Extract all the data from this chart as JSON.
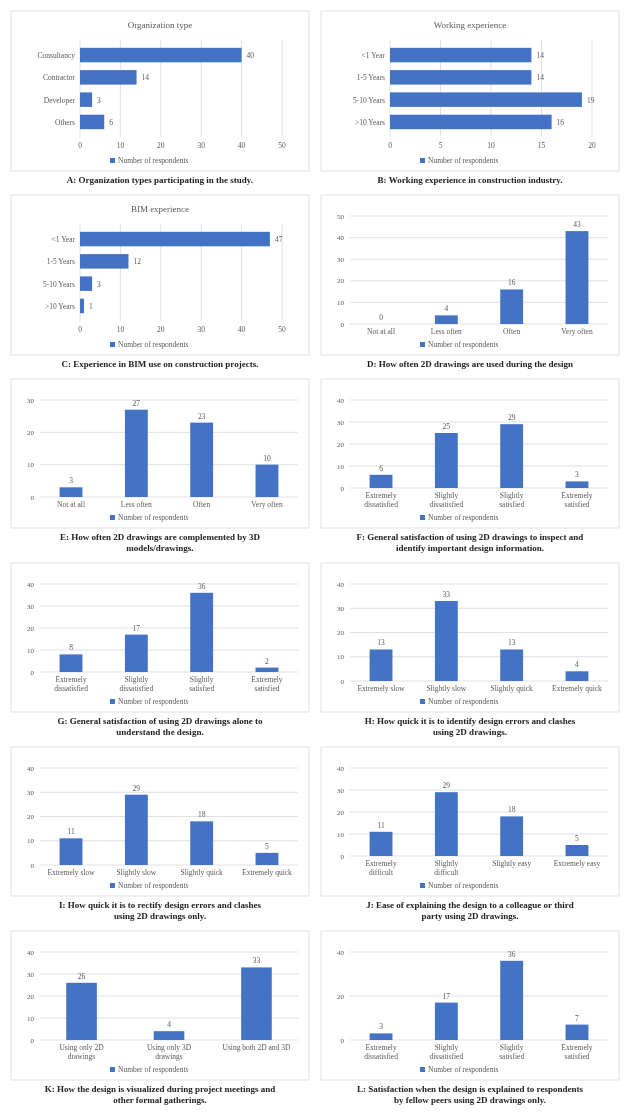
{
  "chart_data": [
    {
      "type": "bar",
      "orientation": "horizontal",
      "title": "Organization type",
      "categories": [
        "Consultancy",
        "Contractor",
        "Developer",
        "Others"
      ],
      "series": [
        {
          "name": "Number of respondents",
          "color": "#4472c4",
          "values": [
            40,
            14,
            3,
            6
          ]
        }
      ],
      "xlim": [
        0,
        50
      ],
      "xticks": [
        0,
        10,
        20,
        30,
        40,
        50
      ],
      "grid": "x",
      "legend": "bottom",
      "data_labels": true,
      "annotations": [
        "A: Organization types participating in the study."
      ]
    },
    {
      "type": "bar",
      "orientation": "horizontal",
      "title": "Working experience",
      "categories": [
        "<1 Year",
        "1-5 Years",
        "5-10 Years",
        ">10 Years"
      ],
      "series": [
        {
          "name": "Number of respondents",
          "color": "#4472c4",
          "values": [
            14,
            14,
            19,
            16
          ]
        }
      ],
      "xlim": [
        0,
        20
      ],
      "xticks": [
        0,
        5,
        10,
        15,
        20
      ],
      "grid": "x",
      "legend": "bottom",
      "data_labels": true,
      "annotations": [
        "B: Working experience in construction industry."
      ]
    },
    {
      "type": "bar",
      "orientation": "horizontal",
      "title": "BIM experience",
      "categories": [
        "<1 Year",
        "1-5 Years",
        "5-10 Years",
        ">10 Years"
      ],
      "series": [
        {
          "name": "Number of respondents",
          "color": "#4472c4",
          "values": [
            47,
            12,
            3,
            1
          ]
        }
      ],
      "xlim": [
        0,
        50
      ],
      "xticks": [
        0,
        10,
        20,
        30,
        40,
        50
      ],
      "grid": "x",
      "legend": "bottom",
      "data_labels": true,
      "annotations": [
        "C: Experience in BIM use on construction projects."
      ]
    },
    {
      "type": "bar",
      "categories": [
        "Not at all",
        "Less often",
        "Often",
        "Very often"
      ],
      "series": [
        {
          "name": "Number of respondents",
          "color": "#4472c4",
          "values": [
            0,
            4,
            16,
            43
          ]
        }
      ],
      "ylim": [
        0,
        50
      ],
      "yticks": [
        0,
        10,
        20,
        30,
        40,
        50
      ],
      "grid": "y",
      "legend": "bottom",
      "data_labels": true,
      "annotations": [
        "D: How often 2D drawings are used during the design"
      ]
    },
    {
      "type": "bar",
      "categories": [
        "Not at all",
        "Less often",
        "Often",
        "Very often"
      ],
      "series": [
        {
          "name": "Number of respondents",
          "color": "#4472c4",
          "values": [
            3,
            27,
            23,
            10
          ]
        }
      ],
      "ylim": [
        0,
        30
      ],
      "yticks": [
        0,
        10,
        20,
        30
      ],
      "grid": "y",
      "legend": "bottom",
      "data_labels": true,
      "annotations": [
        "E: How often 2D drawings are complemented by 3D models/drawings."
      ]
    },
    {
      "type": "bar",
      "categories": [
        "Extremely dissatisfied",
        "Slightly dissatisfied",
        "Slightly satisfied",
        "Extremely satisfied"
      ],
      "series": [
        {
          "name": "Number of respondents",
          "color": "#4472c4",
          "values": [
            6,
            25,
            29,
            3
          ]
        }
      ],
      "ylim": [
        0,
        40
      ],
      "yticks": [
        0,
        10,
        20,
        30,
        40
      ],
      "grid": "y",
      "legend": "bottom",
      "data_labels": true,
      "annotations": [
        "F: General satisfaction of using 2D drawings to inspect and identify important design information."
      ]
    },
    {
      "type": "bar",
      "categories": [
        "Extremely dissatisfied",
        "Slightly dissatisfied",
        "Slightly satisfied",
        "Extremely satisfied"
      ],
      "series": [
        {
          "name": "Number of respondents",
          "color": "#4472c4",
          "values": [
            8,
            17,
            36,
            2
          ]
        }
      ],
      "ylim": [
        0,
        40
      ],
      "yticks": [
        0,
        10,
        20,
        30,
        40
      ],
      "grid": "y",
      "legend": "bottom",
      "data_labels": true,
      "annotations": [
        "G: General satisfaction of using 2D drawings alone to understand the design."
      ]
    },
    {
      "type": "bar",
      "categories": [
        "Extremely slow",
        "Slightly slow",
        "Slightly quick",
        "Extremely quick"
      ],
      "series": [
        {
          "name": "Number of respondents",
          "color": "#4472c4",
          "values": [
            13,
            33,
            13,
            4
          ]
        }
      ],
      "ylim": [
        0,
        40
      ],
      "yticks": [
        0,
        10,
        20,
        30,
        40
      ],
      "grid": "y",
      "legend": "bottom",
      "data_labels": true,
      "annotations": [
        "H: How quick it is to identify design errors and clashes using 2D drawings."
      ]
    },
    {
      "type": "bar",
      "categories": [
        "Extremely slow",
        "Slightly slow",
        "Slightly quick",
        "Extremely quick"
      ],
      "series": [
        {
          "name": "Number of respondents",
          "color": "#4472c4",
          "values": [
            11,
            29,
            18,
            5
          ]
        }
      ],
      "ylim": [
        0,
        40
      ],
      "yticks": [
        0,
        10,
        20,
        30,
        40
      ],
      "grid": "y",
      "legend": "bottom",
      "data_labels": true,
      "annotations": [
        "I: How quick it is to rectify design errors and clashes using 2D drawings only."
      ]
    },
    {
      "type": "bar",
      "categories": [
        "Extremely difficult",
        "Slightly difficult",
        "Slightly easy",
        "Extremely easy"
      ],
      "series": [
        {
          "name": "Number of respondents",
          "color": "#4472c4",
          "values": [
            11,
            29,
            18,
            5
          ]
        }
      ],
      "ylim": [
        0,
        40
      ],
      "yticks": [
        0,
        10,
        20,
        30,
        40
      ],
      "grid": "y",
      "legend": "bottom",
      "data_labels": true,
      "annotations": [
        "J: Ease of explaining the design to a colleague or third party using 2D drawings."
      ]
    },
    {
      "type": "bar",
      "categories": [
        "Using only 2D drawings",
        "Using only 3D drawings",
        "Using both 2D and 3D"
      ],
      "series": [
        {
          "name": "Number of respondents",
          "color": "#4472c4",
          "values": [
            26,
            4,
            33
          ]
        }
      ],
      "ylim": [
        0,
        40
      ],
      "yticks": [
        0,
        10,
        20,
        30,
        40
      ],
      "grid": "y",
      "legend": "bottom",
      "data_labels": true,
      "annotations": [
        "K: How the design is visualized during project meetings and other formal gatherings."
      ]
    },
    {
      "type": "bar",
      "categories": [
        "Extremely dissatisfied",
        "Slightly dissatisfied",
        "Slightly satisfied",
        "Extremely satisfied"
      ],
      "series": [
        {
          "name": "Number of respondents",
          "color": "#4472c4",
          "values": [
            3,
            17,
            36,
            7
          ]
        }
      ],
      "ylim": [
        0,
        40
      ],
      "yticks": [
        0,
        20,
        40
      ],
      "grid": "y",
      "legend": "bottom",
      "data_labels": true,
      "annotations": [
        "L: Satisfaction when the design is explained to respondents by fellow peers using 2D drawings only."
      ]
    }
  ]
}
